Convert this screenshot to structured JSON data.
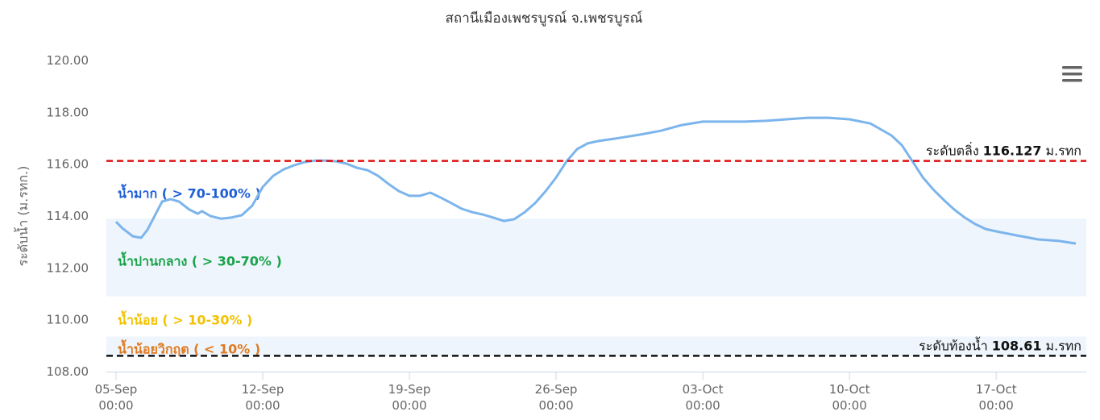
{
  "chart_data": {
    "type": "line",
    "title": "สถานีเมืองเพชรบูรณ์ จ.เพชรบูรณ์",
    "y_axis_label": "ระดับน้ำ (ม.รทก.)",
    "xlim": [
      -0.46,
      46.3
    ],
    "xticks": [
      {
        "value": 0,
        "label": "05-Sep 00:00"
      },
      {
        "value": 7,
        "label": "12-Sep 00:00"
      },
      {
        "value": 14,
        "label": "19-Sep 00:00"
      },
      {
        "value": 21,
        "label": "26-Sep 00:00"
      },
      {
        "value": 28,
        "label": "03-Oct 00:00"
      },
      {
        "value": 35,
        "label": "10-Oct 00:00"
      },
      {
        "value": 42,
        "label": "17-Oct 00:00"
      }
    ],
    "ylim": [
      108,
      120
    ],
    "yticks": [
      {
        "value": 108,
        "label": "108.00"
      },
      {
        "value": 110,
        "label": "110.00"
      },
      {
        "value": 112,
        "label": "112.00"
      },
      {
        "value": 114,
        "label": "114.00"
      },
      {
        "value": 116,
        "label": "116.00"
      },
      {
        "value": 118,
        "label": "118.00"
      },
      {
        "value": 120,
        "label": "120.00"
      }
    ],
    "bands": [
      {
        "from": 110.9,
        "to": 113.9,
        "color": "#eef5fc"
      },
      {
        "from": 108.6,
        "to": 109.35,
        "color": "#eef5fc"
      }
    ],
    "zone_labels": [
      {
        "text": "น้ำมาก ( > 70-100% )",
        "value": 114.85,
        "color": "#1f5fd6"
      },
      {
        "text": "น้ำปานกลาง ( > 30-70% )",
        "value": 112.25,
        "color": "#1aa34a"
      },
      {
        "text": "น้ำน้อย ( > 10-30% )",
        "value": 109.97,
        "color": "#f2c200"
      },
      {
        "text": "น้ำน้อยวิกฤต ( < 10% )",
        "value": 108.85,
        "color": "#e07b22"
      }
    ],
    "reference_lines": [
      {
        "name": "ระดับตลิ่ง",
        "value": 116.127,
        "unit": "ม.รทก",
        "color": "#e01010"
      },
      {
        "name": "ระดับท้องน้ำ",
        "value": 108.61,
        "unit": "ม.รทก",
        "color": "#111111"
      }
    ],
    "series": [
      {
        "color": "#7cb5ec",
        "x": [
          0,
          0.3,
          0.8,
          1.2,
          1.5,
          1.9,
          2.2,
          2.6,
          3,
          3.5,
          3.9,
          4.1,
          4.5,
          5,
          5.5,
          6,
          6.5,
          7,
          7.5,
          8,
          8.5,
          9,
          9.5,
          10,
          10.5,
          11,
          11.5,
          12,
          12.5,
          13,
          13.5,
          14,
          14.5,
          15,
          15.5,
          16,
          16.5,
          17,
          17.5,
          18,
          18.5,
          19,
          19.5,
          20,
          20.5,
          21,
          21.5,
          22,
          22.5,
          23,
          24,
          25,
          26,
          27,
          28,
          29,
          30,
          31,
          32,
          33,
          34,
          35,
          36,
          37,
          37.5,
          38,
          38.5,
          39,
          39.5,
          40,
          40.5,
          41,
          41.5,
          42,
          43,
          44,
          45,
          45.8
        ],
        "values": [
          113.78,
          113.53,
          113.22,
          113.16,
          113.47,
          114.09,
          114.56,
          114.65,
          114.56,
          114.25,
          114.09,
          114.19,
          114.0,
          113.9,
          113.94,
          114.03,
          114.4,
          115.12,
          115.55,
          115.8,
          115.96,
          116.08,
          116.14,
          116.14,
          116.11,
          116.02,
          115.86,
          115.77,
          115.55,
          115.24,
          114.96,
          114.78,
          114.78,
          114.9,
          114.71,
          114.5,
          114.28,
          114.15,
          114.06,
          113.94,
          113.81,
          113.88,
          114.15,
          114.5,
          114.96,
          115.49,
          116.11,
          116.58,
          116.8,
          116.89,
          117.01,
          117.14,
          117.29,
          117.51,
          117.64,
          117.64,
          117.64,
          117.67,
          117.73,
          117.79,
          117.79,
          117.73,
          117.57,
          117.11,
          116.73,
          116.11,
          115.49,
          115.02,
          114.62,
          114.25,
          113.94,
          113.69,
          113.5,
          113.41,
          113.25,
          113.1,
          113.04,
          112.94
        ]
      }
    ]
  }
}
